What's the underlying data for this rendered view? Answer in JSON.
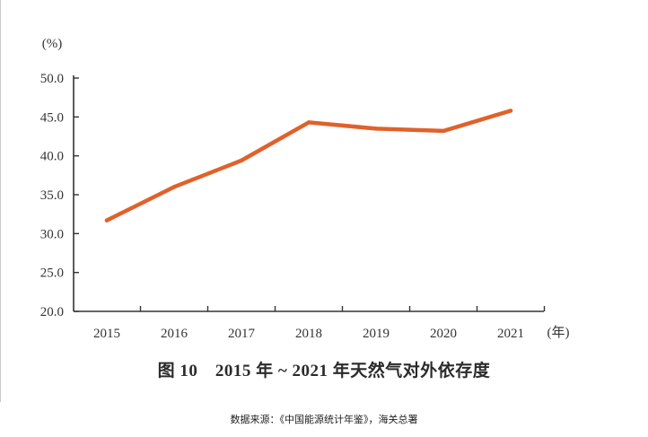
{
  "chart_data": {
    "type": "line",
    "title": "图 10　2015 年 ~ 2021 年天然气对外依存度",
    "ylabel": "(%)",
    "xlabel": "(年)",
    "categories": [
      "2015",
      "2016",
      "2017",
      "2018",
      "2019",
      "2020",
      "2021"
    ],
    "series": [
      {
        "values": [
          31.7,
          36.0,
          39.4,
          44.3,
          43.5,
          43.2,
          45.8
        ]
      }
    ],
    "ylim": [
      20.0,
      50.0
    ],
    "yticks": [
      "20.0",
      "25.0",
      "30.0",
      "35.0",
      "40.0",
      "45.0",
      "50.0"
    ],
    "grid": false,
    "line_color": "#e0612b"
  },
  "source_note": "数据来源：《中国能源统计年鉴》，海关总署"
}
